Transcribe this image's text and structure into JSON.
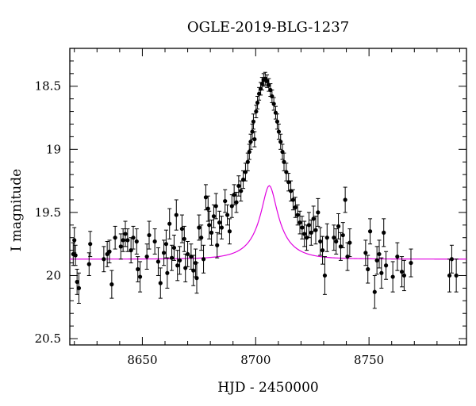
{
  "chart_data": {
    "type": "scatter",
    "title": "OGLE-2019-BLG-1237",
    "xlabel": "HJD - 2450000",
    "ylabel": "I magnitude",
    "xlim": [
      8618,
      8793
    ],
    "ylim": [
      20.55,
      18.2
    ],
    "y_inverted": true,
    "x_ticks": [
      {
        "value": 8650,
        "label": "8650"
      },
      {
        "value": 8700,
        "label": "8700"
      },
      {
        "value": 8750,
        "label": "8750"
      }
    ],
    "y_ticks": [
      {
        "value": 18.5,
        "label": "18.5"
      },
      {
        "value": 19,
        "label": "19"
      },
      {
        "value": 19.5,
        "label": "19.5"
      },
      {
        "value": 20,
        "label": "20"
      },
      {
        "value": 20.5,
        "label": "20.5"
      }
    ],
    "grid": false,
    "colors": {
      "data": "#000000",
      "model": "#e000e0"
    },
    "model": {
      "t0": 8706.0,
      "tE": 12.5,
      "u0": 0.255,
      "base": 19.87,
      "fs": 0.235
    },
    "points": [
      [
        8619.5,
        19.83,
        0.09
      ],
      [
        8620.5,
        19.84,
        0.08
      ],
      [
        8621.2,
        20.05,
        0.1
      ],
      [
        8622.0,
        20.1,
        0.12
      ],
      [
        8620.0,
        19.72,
        0.1
      ],
      [
        8626.5,
        19.91,
        0.09
      ],
      [
        8627.0,
        19.75,
        0.1
      ],
      [
        8633.0,
        19.87,
        0.1
      ],
      [
        8634.5,
        19.83,
        0.1
      ],
      [
        8635.5,
        19.81,
        0.09
      ],
      [
        8636.5,
        20.07,
        0.11
      ],
      [
        8638.0,
        19.7,
        0.09
      ],
      [
        8640.5,
        19.77,
        0.1
      ],
      [
        8641.5,
        19.72,
        0.09
      ],
      [
        8642.5,
        19.67,
        0.1
      ],
      [
        8643.5,
        19.72,
        0.09
      ],
      [
        8645.0,
        19.8,
        0.1
      ],
      [
        8646.0,
        19.7,
        0.09
      ],
      [
        8647.5,
        19.73,
        0.1
      ],
      [
        8648.0,
        19.95,
        0.1
      ],
      [
        8649.0,
        20.01,
        0.12
      ],
      [
        8652.0,
        19.85,
        0.1
      ],
      [
        8653.0,
        19.68,
        0.11
      ],
      [
        8655.5,
        19.73,
        0.1
      ],
      [
        8657.0,
        19.89,
        0.11
      ],
      [
        8658.0,
        20.06,
        0.12
      ],
      [
        8659.5,
        19.82,
        0.1
      ],
      [
        8660.5,
        19.75,
        0.11
      ],
      [
        8661.0,
        19.98,
        0.12
      ],
      [
        8662.0,
        19.59,
        0.12
      ],
      [
        8663.0,
        19.86,
        0.1
      ],
      [
        8664.0,
        19.78,
        0.1
      ],
      [
        8665.0,
        19.52,
        0.12
      ],
      [
        8665.5,
        19.92,
        0.12
      ],
      [
        8666.5,
        19.88,
        0.11
      ],
      [
        8667.5,
        19.63,
        0.11
      ],
      [
        8668.5,
        19.71,
        0.1
      ],
      [
        8669.0,
        19.94,
        0.11
      ],
      [
        8670.0,
        19.83,
        0.1
      ],
      [
        8671.5,
        19.85,
        0.1
      ],
      [
        8672.5,
        19.96,
        0.12
      ],
      [
        8673.5,
        19.9,
        0.11
      ],
      [
        8674.0,
        20.02,
        0.12
      ],
      [
        8675.0,
        19.62,
        0.1
      ],
      [
        8676.0,
        19.7,
        0.1
      ],
      [
        8677.0,
        19.87,
        0.11
      ],
      [
        8678.0,
        19.38,
        0.1
      ],
      [
        8679.0,
        19.47,
        0.1
      ],
      [
        8679.5,
        19.6,
        0.11
      ],
      [
        8680.5,
        19.66,
        0.1
      ],
      [
        8681.5,
        19.53,
        0.09
      ],
      [
        8682.5,
        19.45,
        0.1
      ],
      [
        8683.0,
        19.76,
        0.1
      ],
      [
        8684.0,
        19.58,
        0.09
      ],
      [
        8685.0,
        19.62,
        0.09
      ],
      [
        8686.5,
        19.41,
        0.09
      ],
      [
        8687.5,
        19.52,
        0.08
      ],
      [
        8688.5,
        19.65,
        0.1
      ],
      [
        8689.5,
        19.45,
        0.09
      ],
      [
        8690.5,
        19.36,
        0.08
      ],
      [
        8691.5,
        19.42,
        0.08
      ],
      [
        8692.5,
        19.29,
        0.08
      ],
      [
        8693.5,
        19.33,
        0.08
      ],
      [
        8694.5,
        19.24,
        0.07
      ],
      [
        8695.5,
        19.18,
        0.07
      ],
      [
        8696.5,
        19.1,
        0.07
      ],
      [
        8697.2,
        19.02,
        0.06
      ],
      [
        8697.8,
        18.94,
        0.06
      ],
      [
        8698.5,
        18.86,
        0.06
      ],
      [
        8699.0,
        18.78,
        0.06
      ],
      [
        8699.5,
        18.92,
        0.06
      ],
      [
        8700.2,
        18.7,
        0.05
      ],
      [
        8700.8,
        18.63,
        0.05
      ],
      [
        8701.5,
        18.56,
        0.05
      ],
      [
        8702.2,
        18.52,
        0.05
      ],
      [
        8702.8,
        18.48,
        0.05
      ],
      [
        8703.5,
        18.45,
        0.05
      ],
      [
        8704.2,
        18.44,
        0.05
      ],
      [
        8705.0,
        18.46,
        0.05
      ],
      [
        8705.8,
        18.49,
        0.05
      ],
      [
        8706.5,
        18.53,
        0.05
      ],
      [
        8707.2,
        18.58,
        0.05
      ],
      [
        8708.0,
        18.64,
        0.05
      ],
      [
        8708.8,
        18.71,
        0.05
      ],
      [
        8709.5,
        18.78,
        0.06
      ],
      [
        8710.2,
        18.86,
        0.06
      ],
      [
        8711.0,
        18.94,
        0.06
      ],
      [
        8711.8,
        19.02,
        0.06
      ],
      [
        8712.5,
        19.1,
        0.07
      ],
      [
        8713.5,
        19.18,
        0.07
      ],
      [
        8714.5,
        19.26,
        0.07
      ],
      [
        8715.5,
        19.33,
        0.08
      ],
      [
        8716.5,
        19.4,
        0.08
      ],
      [
        8717.5,
        19.46,
        0.08
      ],
      [
        8718.5,
        19.52,
        0.08
      ],
      [
        8719.5,
        19.58,
        0.09
      ],
      [
        8720.5,
        19.62,
        0.09
      ],
      [
        8721.5,
        19.67,
        0.1
      ],
      [
        8722.5,
        19.7,
        0.1
      ],
      [
        8723.5,
        19.6,
        0.1
      ],
      [
        8724.5,
        19.66,
        0.1
      ],
      [
        8725.5,
        19.55,
        0.1
      ],
      [
        8726.5,
        19.64,
        0.11
      ],
      [
        8727.5,
        19.5,
        0.11
      ],
      [
        8728.5,
        19.73,
        0.11
      ],
      [
        8729.5,
        19.8,
        0.11
      ],
      [
        8730.5,
        20.0,
        0.15
      ],
      [
        8731.5,
        19.7,
        0.11
      ],
      [
        8734.5,
        19.7,
        0.1
      ],
      [
        8735.5,
        19.73,
        0.1
      ],
      [
        8736.5,
        19.61,
        0.1
      ],
      [
        8737.5,
        19.77,
        0.11
      ],
      [
        8738.5,
        19.68,
        0.1
      ],
      [
        8739.5,
        19.4,
        0.1
      ],
      [
        8740.5,
        19.85,
        0.11
      ],
      [
        8741.5,
        19.74,
        0.11
      ],
      [
        8748.5,
        19.82,
        0.1
      ],
      [
        8749.5,
        19.95,
        0.11
      ],
      [
        8750.5,
        19.65,
        0.1
      ],
      [
        8752.5,
        20.13,
        0.13
      ],
      [
        8753.5,
        19.88,
        0.11
      ],
      [
        8754.5,
        19.83,
        0.11
      ],
      [
        8755.5,
        19.98,
        0.12
      ],
      [
        8756.5,
        19.66,
        0.11
      ],
      [
        8757.5,
        19.92,
        0.11
      ],
      [
        8760.5,
        20.01,
        0.12
      ],
      [
        8762.5,
        19.85,
        0.11
      ],
      [
        8764.5,
        19.97,
        0.12
      ],
      [
        8765.5,
        20.0,
        0.12
      ],
      [
        8768.5,
        19.9,
        0.11
      ],
      [
        8785.5,
        20.0,
        0.13
      ],
      [
        8786.5,
        19.87,
        0.11
      ],
      [
        8788.5,
        20.0,
        0.13
      ]
    ]
  }
}
